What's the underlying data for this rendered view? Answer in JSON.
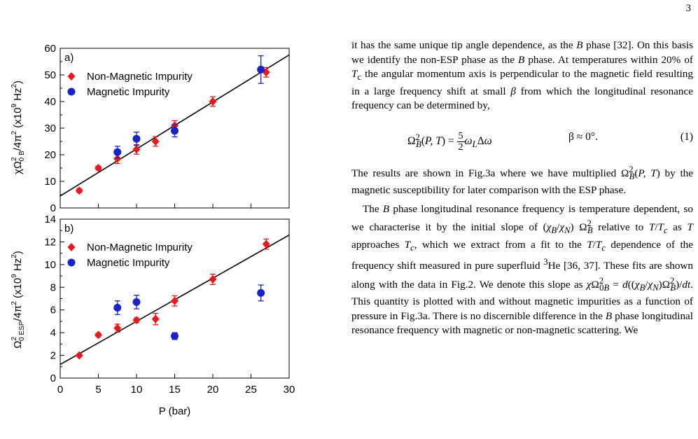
{
  "page_number": "3",
  "chart_data": [
    {
      "type": "scatter",
      "panel": "a)",
      "ylabel": "χΩ_0B^2/4π^2 (x10^9 Hz^2)",
      "xlim": [
        0,
        30
      ],
      "ylim": [
        0,
        60
      ],
      "yticks": [
        0,
        10,
        20,
        30,
        40,
        50,
        60
      ],
      "xticks": [
        0,
        5,
        10,
        15,
        20,
        25,
        30
      ],
      "legend_position": "top-left",
      "fit_line": {
        "x": [
          0,
          30
        ],
        "y": [
          4.5,
          57.5
        ]
      },
      "series": [
        {
          "name": "Non-Magnetic Impurity",
          "marker": "diamond",
          "color": "#e8181b",
          "x": [
            2.5,
            5,
            7.5,
            10,
            12.5,
            15,
            20,
            27
          ],
          "y": [
            6.5,
            15,
            18.5,
            22,
            25,
            31,
            40,
            51
          ],
          "err": [
            0.7,
            0.7,
            1.8,
            1.8,
            1.8,
            1.8,
            1.8,
            1.8
          ]
        },
        {
          "name": "Magnetic Impurity",
          "marker": "circle",
          "color": "#1a23c7",
          "x": [
            7.5,
            10,
            15,
            26.3
          ],
          "y": [
            21,
            26,
            29,
            52
          ],
          "err": [
            2.2,
            2.5,
            2.3,
            5.2
          ]
        }
      ]
    },
    {
      "type": "scatter",
      "panel": "b)",
      "ylabel": "Ω_0ESP^2/4π^2 (x10^9 Hz^2)",
      "xlabel": "P (bar)",
      "xlim": [
        0,
        30
      ],
      "ylim": [
        0,
        14
      ],
      "yticks": [
        0,
        2,
        4,
        6,
        8,
        10,
        12,
        14
      ],
      "xticks": [
        0,
        5,
        10,
        15,
        20,
        25,
        30
      ],
      "legend_position": "top-left",
      "fit_line": {
        "x": [
          0,
          30
        ],
        "y": [
          1.2,
          12.6
        ]
      },
      "series": [
        {
          "name": "Non-Magnetic Impurity",
          "marker": "diamond",
          "color": "#e8181b",
          "x": [
            2.5,
            5,
            7.5,
            10,
            12.5,
            15,
            20,
            27
          ],
          "y": [
            2.0,
            3.8,
            4.4,
            5.1,
            5.2,
            6.8,
            8.7,
            11.8
          ],
          "err": [
            0.12,
            0.15,
            0.35,
            0.2,
            0.5,
            0.45,
            0.45,
            0.45
          ]
        },
        {
          "name": "Magnetic Impurity",
          "marker": "circle",
          "color": "#1a23c7",
          "x": [
            7.5,
            10,
            15,
            26.3
          ],
          "y": [
            6.2,
            6.7,
            3.7,
            7.5
          ],
          "err": [
            0.6,
            0.6,
            0.3,
            0.7
          ]
        }
      ]
    }
  ],
  "text": {
    "p1_a": "it has the same unique tip angle dependence, as the ",
    "p1_b": " phase [32]. On this basis we identify the non-ESP phase as the ",
    "p1_c": " phase. At temperatures within 20% of ",
    "p1_d": " the angular momentum axis is perpendicular to the magnetic field resulting in a large frequency shift at small ",
    "p1_e": " from which the longitudinal resonance frequency can be determined by,",
    "eq_number": "(1)",
    "eq_condition": "β ≈ 0°.",
    "p2_a": "The results are shown in Fig.3a where we have multiplied ",
    "p2_b": " by the magnetic susceptibility for later comparison with the ESP phase.",
    "p3_a": "The ",
    "p3_b": " phase longitudinal resonance frequency is temperature dependent, so we characterise it by the initial slope of ",
    "p3_c": " relative to ",
    "p3_d": " as ",
    "p3_e": " approaches ",
    "p3_f": ", which we extract from a fit to the ",
    "p3_g": " dependence of the frequency shift measured in pure superfluid ",
    "p3_h": "He [36, 37]. These fits are shown along with the data in Fig.2. We denote this slope as ",
    "p3_i": ". This quantity is plotted with and without magnetic impurities as a function of pressure in Fig.3a. There is no discernible difference in the ",
    "p3_j": " phase longitudinal resonance frequency with magnetic or non-magnetic scattering. We"
  }
}
